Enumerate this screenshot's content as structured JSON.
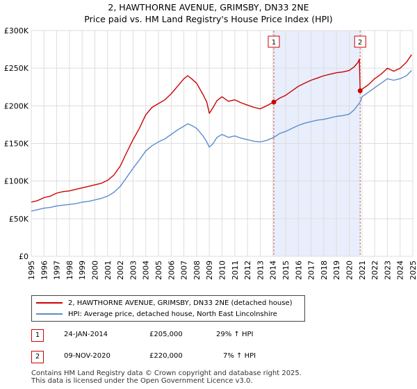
{
  "title_line1": "2, HAWTHORNE AVENUE, GRIMSBY, DN33 2NE",
  "title_line2": "Price paid vs. HM Land Registry's House Price Index (HPI)",
  "colors": {
    "property": "#cc0000",
    "hpi": "#5b8ccc",
    "shade": "#e8eefb",
    "vline": "#d06060",
    "grid": "#dddddd"
  },
  "chart_data": {
    "type": "line",
    "x_range": [
      1995,
      2025
    ],
    "ylim": [
      0,
      300000
    ],
    "y_ticks": [
      {
        "value": 0,
        "label": "£0"
      },
      {
        "value": 50000,
        "label": "£50K"
      },
      {
        "value": 100000,
        "label": "£100K"
      },
      {
        "value": 150000,
        "label": "£150K"
      },
      {
        "value": 200000,
        "label": "£200K"
      },
      {
        "value": 250000,
        "label": "£250K"
      },
      {
        "value": 300000,
        "label": "£300K"
      }
    ],
    "x_ticks": [
      "1995",
      "1996",
      "1997",
      "1998",
      "1999",
      "2000",
      "2001",
      "2002",
      "2003",
      "2004",
      "2005",
      "2006",
      "2007",
      "2008",
      "2009",
      "2010",
      "2011",
      "2012",
      "2013",
      "2014",
      "2015",
      "2016",
      "2017",
      "2018",
      "2019",
      "2020",
      "2021",
      "2022",
      "2023",
      "2024",
      "2025"
    ],
    "shaded_range": [
      2014.07,
      2020.86
    ],
    "series": [
      {
        "name": "2, HAWTHORNE AVENUE, GRIMSBY, DN33 2NE (detached house)",
        "x": [
          1995.0,
          1995.5,
          1996.0,
          1996.5,
          1997.0,
          1997.5,
          1998.0,
          1998.5,
          1999.0,
          1999.5,
          2000.0,
          2000.5,
          2001.0,
          2001.5,
          2002.0,
          2002.5,
          2003.0,
          2003.5,
          2004.0,
          2004.5,
          2005.0,
          2005.5,
          2006.0,
          2006.5,
          2007.0,
          2007.3,
          2007.6,
          2008.0,
          2008.5,
          2008.8,
          2009.0,
          2009.3,
          2009.6,
          2010.0,
          2010.5,
          2011.0,
          2011.5,
          2012.0,
          2012.5,
          2013.0,
          2013.5,
          2014.07,
          2014.5,
          2015.0,
          2015.5,
          2016.0,
          2016.5,
          2017.0,
          2017.5,
          2018.0,
          2018.5,
          2019.0,
          2019.5,
          2020.0,
          2020.4,
          2020.7,
          2020.8,
          2020.86,
          2021.0,
          2021.5,
          2022.0,
          2022.5,
          2023.0,
          2023.5,
          2024.0,
          2024.5,
          2024.9
        ],
        "y": [
          72000,
          74000,
          78000,
          80000,
          84000,
          86000,
          87000,
          89000,
          91000,
          93000,
          95000,
          97000,
          101000,
          108000,
          120000,
          138000,
          155000,
          170000,
          188000,
          198000,
          203000,
          208000,
          216000,
          226000,
          236000,
          240000,
          236000,
          230000,
          215000,
          205000,
          190000,
          198000,
          207000,
          212000,
          206000,
          208000,
          204000,
          201000,
          198000,
          196000,
          200000,
          205000,
          210000,
          214000,
          220000,
          226000,
          230000,
          234000,
          237000,
          240000,
          242000,
          244000,
          245000,
          247000,
          252000,
          258000,
          262000,
          220000,
          222000,
          228000,
          236000,
          242000,
          250000,
          246000,
          250000,
          258000,
          268000
        ]
      },
      {
        "name": "HPI: Average price, detached house, North East Lincolnshire",
        "x": [
          1995.0,
          1995.5,
          1996.0,
          1996.5,
          1997.0,
          1997.5,
          1998.0,
          1998.5,
          1999.0,
          1999.5,
          2000.0,
          2000.5,
          2001.0,
          2001.5,
          2002.0,
          2002.5,
          2003.0,
          2003.5,
          2004.0,
          2004.5,
          2005.0,
          2005.5,
          2006.0,
          2006.5,
          2007.0,
          2007.3,
          2007.6,
          2008.0,
          2008.5,
          2008.8,
          2009.0,
          2009.3,
          2009.6,
          2010.0,
          2010.5,
          2011.0,
          2011.5,
          2012.0,
          2012.5,
          2013.0,
          2013.5,
          2014.07,
          2014.5,
          2015.0,
          2015.5,
          2016.0,
          2016.5,
          2017.0,
          2017.5,
          2018.0,
          2018.5,
          2019.0,
          2019.5,
          2020.0,
          2020.4,
          2020.86,
          2021.0,
          2021.5,
          2022.0,
          2022.5,
          2023.0,
          2023.5,
          2024.0,
          2024.5,
          2024.9
        ],
        "y": [
          60000,
          62000,
          64000,
          65000,
          67000,
          68000,
          69000,
          70000,
          72000,
          73000,
          75000,
          77000,
          80000,
          85000,
          93000,
          105000,
          117000,
          128000,
          140000,
          147000,
          152000,
          156000,
          162000,
          168000,
          173000,
          176000,
          174000,
          170000,
          160000,
          152000,
          145000,
          150000,
          158000,
          162000,
          158000,
          160000,
          157000,
          155000,
          153000,
          152000,
          154000,
          158000,
          163000,
          166000,
          170000,
          174000,
          177000,
          179000,
          181000,
          182000,
          184000,
          186000,
          187000,
          189000,
          195000,
          205000,
          212000,
          218000,
          224000,
          230000,
          236000,
          234000,
          236000,
          240000,
          247000
        ]
      }
    ],
    "sales": [
      {
        "label": "1",
        "x": 2014.07,
        "y": 205000
      },
      {
        "label": "2",
        "x": 2020.86,
        "y": 220000
      }
    ]
  },
  "legend": {
    "property": "2, HAWTHORNE AVENUE, GRIMSBY, DN33 2NE (detached house)",
    "hpi": "HPI: Average price, detached house, North East Lincolnshire"
  },
  "transactions": [
    {
      "num": "1",
      "date": "24-JAN-2014",
      "price": "£205,000",
      "hpi": "29% ↑ HPI"
    },
    {
      "num": "2",
      "date": "09-NOV-2020",
      "price": "£220,000",
      "hpi": "7% ↑ HPI"
    }
  ],
  "footer": {
    "line1": "Contains HM Land Registry data © Crown copyright and database right 2025.",
    "line2": "This data is licensed under the Open Government Licence v3.0."
  }
}
